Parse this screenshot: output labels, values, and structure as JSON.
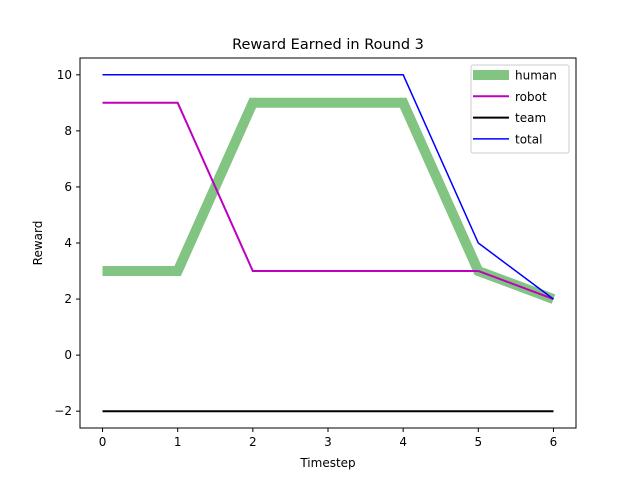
{
  "chart_data": {
    "type": "line",
    "title": "Reward Earned in Round 3",
    "xlabel": "Timestep",
    "ylabel": "Reward",
    "x": [
      0,
      1,
      2,
      3,
      4,
      5,
      6
    ],
    "xlim": [
      -0.3,
      6.3
    ],
    "ylim": [
      -2.6,
      10.6
    ],
    "xticks": [
      0,
      1,
      2,
      3,
      4,
      5,
      6
    ],
    "yticks": [
      -2,
      0,
      2,
      4,
      6,
      8,
      10
    ],
    "ytick_labels": [
      "−2",
      "0",
      "2",
      "4",
      "6",
      "8",
      "10"
    ],
    "grid": false,
    "legend_position": "top-right",
    "series": [
      {
        "name": "human",
        "color": "#82c482",
        "values": [
          3,
          3,
          9,
          9,
          9,
          3,
          2
        ],
        "stroke": "thick"
      },
      {
        "name": "robot",
        "color": "#bf00bf",
        "values": [
          9,
          9,
          3,
          3,
          3,
          3,
          2
        ],
        "stroke": "medium"
      },
      {
        "name": "team",
        "color": "#000000",
        "values": [
          -2,
          -2,
          -2,
          -2,
          -2,
          -2,
          -2
        ],
        "stroke": "medium"
      },
      {
        "name": "total",
        "color": "#0000ff",
        "values": [
          10,
          10,
          10,
          10,
          10,
          4,
          2
        ],
        "stroke": "thin"
      }
    ]
  }
}
